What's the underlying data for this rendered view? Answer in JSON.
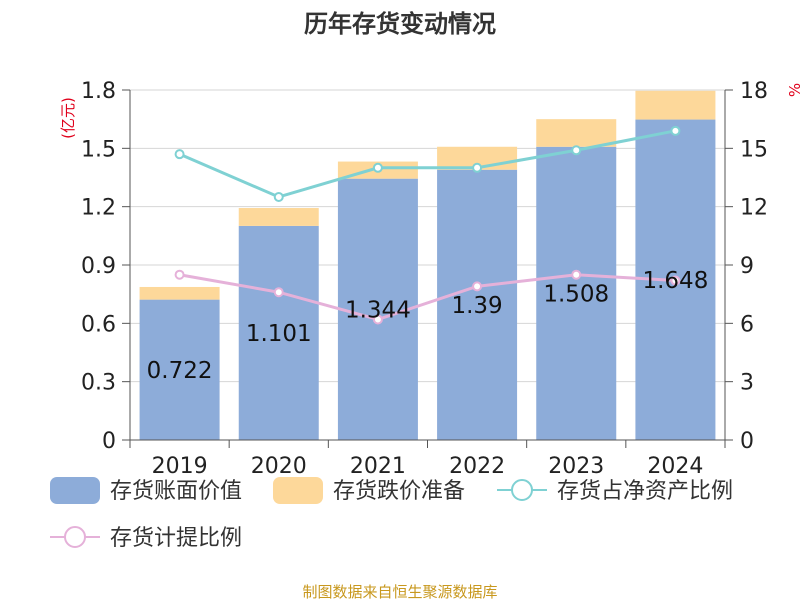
{
  "chart_data": {
    "type": "bar",
    "title": "历年存货变动情况",
    "categories": [
      "2019",
      "2020",
      "2021",
      "2022",
      "2023",
      "2024"
    ],
    "left_axis": {
      "unit": "(亿元)",
      "range": [
        0,
        1.8
      ],
      "ticks": [
        "0",
        "0.3",
        "0.6",
        "0.9",
        "1.2",
        "1.5",
        "1.8"
      ]
    },
    "right_axis": {
      "unit": "%",
      "range": [
        0,
        18
      ],
      "ticks": [
        "0",
        "3",
        "6",
        "9",
        "12",
        "15",
        "18"
      ]
    },
    "series": [
      {
        "name": "存货账面价值",
        "kind": "bar",
        "axis": "left",
        "color": "#8dacd9",
        "values": [
          0.722,
          1.101,
          1.344,
          1.39,
          1.508,
          1.648
        ],
        "labels": [
          "0.722",
          "1.101",
          "1.344",
          "1.39",
          "1.508",
          "1.648"
        ]
      },
      {
        "name": "存货跌价准备",
        "kind": "bar-stack",
        "axis": "left",
        "color": "#fdd89a",
        "values": [
          0.065,
          0.092,
          0.088,
          0.118,
          0.142,
          0.148
        ]
      },
      {
        "name": "存货占净资产比例",
        "kind": "line",
        "axis": "right",
        "color": "#7fd1d3",
        "values": [
          14.7,
          12.5,
          14.0,
          14.0,
          14.9,
          15.9
        ]
      },
      {
        "name": "存货计提比例",
        "kind": "line",
        "axis": "right",
        "color": "#e5b1d9",
        "values": [
          8.5,
          7.6,
          6.2,
          7.9,
          8.5,
          8.2
        ]
      }
    ],
    "legend_position": "bottom",
    "grid": true
  },
  "source": "制图数据来自恒生聚源数据库"
}
